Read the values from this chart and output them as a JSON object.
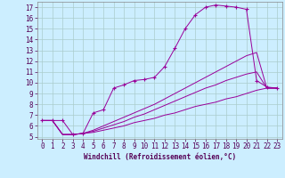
{
  "xlabel": "Windchill (Refroidissement éolien,°C)",
  "background_color": "#cceeff",
  "grid_color": "#aacccc",
  "line_color": "#990099",
  "xlim": [
    -0.5,
    23.5
  ],
  "ylim": [
    4.8,
    17.5
  ],
  "xticks": [
    0,
    1,
    2,
    3,
    4,
    5,
    6,
    7,
    8,
    9,
    10,
    11,
    12,
    13,
    14,
    15,
    16,
    17,
    18,
    19,
    20,
    21,
    22,
    23
  ],
  "yticks": [
    5,
    6,
    7,
    8,
    9,
    10,
    11,
    12,
    13,
    14,
    15,
    16,
    17
  ],
  "series": [
    {
      "x": [
        0,
        1,
        2,
        3,
        4,
        5,
        6,
        7,
        8,
        9,
        10,
        11,
        12,
        13,
        14,
        15,
        16,
        17,
        18,
        19,
        20,
        21,
        22,
        23
      ],
      "y": [
        6.5,
        6.5,
        6.5,
        5.2,
        5.3,
        7.2,
        7.5,
        9.5,
        9.8,
        10.2,
        10.3,
        10.5,
        11.5,
        13.2,
        15.0,
        16.3,
        17.0,
        17.2,
        17.1,
        17.0,
        16.8,
        10.2,
        9.6,
        9.5
      ],
      "marker": "+"
    },
    {
      "x": [
        0,
        1,
        2,
        3,
        4,
        5,
        6,
        7,
        8,
        9,
        10,
        11,
        12,
        13,
        14,
        15,
        16,
        17,
        18,
        19,
        20,
        21,
        22,
        23
      ],
      "y": [
        6.5,
        6.5,
        5.2,
        5.2,
        5.3,
        5.4,
        5.6,
        5.8,
        6.0,
        6.3,
        6.5,
        6.7,
        7.0,
        7.2,
        7.5,
        7.8,
        8.0,
        8.2,
        8.5,
        8.7,
        9.0,
        9.3,
        9.5,
        9.5
      ],
      "marker": null
    },
    {
      "x": [
        0,
        1,
        2,
        3,
        4,
        5,
        6,
        7,
        8,
        9,
        10,
        11,
        12,
        13,
        14,
        15,
        16,
        17,
        18,
        19,
        20,
        21,
        22,
        23
      ],
      "y": [
        6.5,
        6.5,
        5.2,
        5.2,
        5.3,
        5.5,
        5.8,
        6.1,
        6.4,
        6.8,
        7.1,
        7.5,
        7.9,
        8.3,
        8.7,
        9.1,
        9.5,
        9.8,
        10.2,
        10.5,
        10.8,
        11.0,
        9.5,
        9.5
      ],
      "marker": null
    },
    {
      "x": [
        0,
        1,
        2,
        3,
        4,
        5,
        6,
        7,
        8,
        9,
        10,
        11,
        12,
        13,
        14,
        15,
        16,
        17,
        18,
        19,
        20,
        21,
        22,
        23
      ],
      "y": [
        6.5,
        6.5,
        5.2,
        5.2,
        5.3,
        5.6,
        6.0,
        6.4,
        6.8,
        7.2,
        7.6,
        8.0,
        8.5,
        9.0,
        9.5,
        10.0,
        10.5,
        11.0,
        11.5,
        12.0,
        12.5,
        12.8,
        9.5,
        9.5
      ],
      "marker": null
    }
  ],
  "tick_fontsize": 5.5,
  "axis_fontsize": 5.5
}
